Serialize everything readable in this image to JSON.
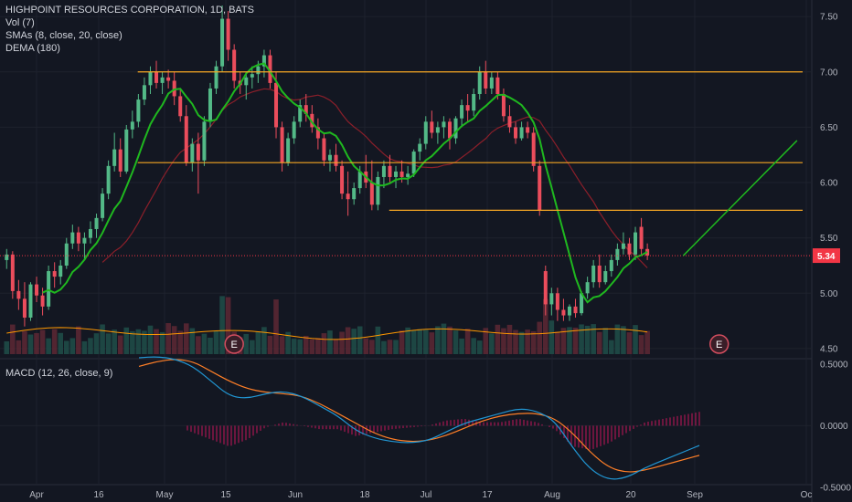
{
  "header": {
    "symbol_line": "HIGHPOINT RESOURCES CORPORATION, 1D, BATS",
    "vol_label": "Vol (7)",
    "sma_label": "SMAs (8, close, 20, close)",
    "dema_label": "DEMA (180)",
    "macd_label": "MACD (12, 26, close, 9)"
  },
  "colors": {
    "background": "#131722",
    "up": "#26a69a",
    "up_candle": "#53b987",
    "down_candle": "#eb4d5c",
    "sma8": "#1fb81f",
    "sma20": "#8b1f2a",
    "level_line": "#f5a623",
    "macd_line": "#2196d3",
    "signal_line": "#ff7f27",
    "vol_ma": "#ff9800",
    "price_tag": "#f23645",
    "projection": "#1fb81f"
  },
  "chart_data": [
    {
      "type": "candlestick",
      "title": "HIGHPOINT RESOURCES CORPORATION, 1D, BATS",
      "price_axis": {
        "min": 4.45,
        "max": 7.6,
        "ticks": [
          7.5,
          7.0,
          6.5,
          6.0,
          5.5,
          5.0,
          4.5
        ]
      },
      "time_axis": [
        "Apr",
        "16",
        "May",
        "15",
        "Jun",
        "18",
        "Jul",
        "17",
        "Aug",
        "20",
        "Sep",
        "Oc"
      ],
      "last_price": "5.34",
      "candles": [
        [
          5.3,
          5.4,
          5.22,
          5.35
        ],
        [
          5.35,
          5.38,
          4.95,
          5.02
        ],
        [
          5.02,
          5.12,
          4.85,
          4.95
        ],
        [
          4.95,
          5.1,
          4.7,
          4.78
        ],
        [
          4.78,
          5.1,
          4.75,
          5.08
        ],
        [
          5.08,
          5.15,
          4.92,
          4.98
        ],
        [
          4.98,
          5.05,
          4.8,
          4.88
        ],
        [
          4.88,
          5.25,
          4.85,
          5.2
        ],
        [
          5.2,
          5.28,
          5.05,
          5.15
        ],
        [
          5.15,
          5.3,
          5.08,
          5.25
        ],
        [
          5.25,
          5.5,
          5.22,
          5.45
        ],
        [
          5.45,
          5.62,
          5.4,
          5.55
        ],
        [
          5.55,
          5.6,
          5.38,
          5.45
        ],
        [
          5.45,
          5.55,
          5.3,
          5.5
        ],
        [
          5.5,
          5.65,
          5.45,
          5.58
        ],
        [
          5.58,
          5.72,
          5.5,
          5.68
        ],
        [
          5.68,
          5.95,
          5.65,
          5.9
        ],
        [
          5.9,
          6.2,
          5.85,
          6.15
        ],
        [
          6.15,
          6.45,
          6.1,
          6.3
        ],
        [
          6.3,
          6.4,
          6.05,
          6.1
        ],
        [
          6.1,
          6.52,
          6.08,
          6.48
        ],
        [
          6.48,
          6.65,
          6.4,
          6.55
        ],
        [
          6.55,
          6.8,
          6.5,
          6.75
        ],
        [
          6.75,
          6.95,
          6.7,
          6.88
        ],
        [
          6.88,
          7.05,
          6.8,
          7.0
        ],
        [
          7.0,
          7.1,
          6.85,
          6.9
        ],
        [
          6.9,
          7.0,
          6.8,
          6.95
        ],
        [
          6.95,
          7.02,
          6.85,
          6.92
        ],
        [
          6.92,
          7.0,
          6.7,
          6.78
        ],
        [
          6.78,
          6.85,
          6.55,
          6.6
        ],
        [
          6.6,
          6.7,
          6.15,
          6.18
        ],
        [
          6.18,
          6.4,
          6.1,
          6.35
        ],
        [
          6.35,
          6.45,
          5.9,
          6.2
        ],
        [
          6.2,
          6.6,
          6.15,
          6.55
        ],
        [
          6.55,
          6.9,
          6.5,
          6.85
        ],
        [
          6.85,
          7.1,
          6.8,
          7.05
        ],
        [
          7.05,
          7.6,
          7.0,
          7.48
        ],
        [
          7.48,
          7.55,
          7.1,
          7.2
        ],
        [
          7.2,
          7.25,
          6.85,
          6.92
        ],
        [
          6.92,
          7.0,
          6.8,
          6.88
        ],
        [
          6.88,
          7.0,
          6.75,
          6.95
        ],
        [
          6.95,
          7.05,
          6.85,
          6.98
        ],
        [
          6.98,
          7.1,
          6.9,
          7.05
        ],
        [
          7.05,
          7.2,
          6.95,
          7.15
        ],
        [
          7.15,
          7.2,
          6.85,
          6.9
        ],
        [
          6.9,
          7.0,
          6.4,
          6.5
        ],
        [
          6.5,
          6.55,
          6.1,
          6.18
        ],
        [
          6.18,
          6.45,
          6.15,
          6.4
        ],
        [
          6.4,
          6.6,
          6.35,
          6.55
        ],
        [
          6.55,
          6.75,
          6.5,
          6.7
        ],
        [
          6.7,
          6.8,
          6.55,
          6.62
        ],
        [
          6.62,
          6.7,
          6.45,
          6.5
        ],
        [
          6.5,
          6.58,
          6.3,
          6.4
        ],
        [
          6.4,
          6.45,
          6.15,
          6.2
        ],
        [
          6.2,
          6.3,
          6.1,
          6.25
        ],
        [
          6.25,
          6.35,
          6.1,
          6.15
        ],
        [
          6.15,
          6.2,
          5.85,
          5.9
        ],
        [
          5.9,
          6.1,
          5.7,
          5.85
        ],
        [
          5.85,
          6.0,
          5.8,
          5.95
        ],
        [
          5.95,
          6.15,
          5.9,
          6.1
        ],
        [
          6.1,
          6.25,
          5.95,
          6.0
        ],
        [
          6.0,
          6.2,
          5.75,
          5.8
        ],
        [
          5.8,
          6.1,
          5.75,
          6.05
        ],
        [
          6.05,
          6.2,
          5.95,
          6.15
        ],
        [
          6.15,
          6.25,
          6.0,
          6.05
        ],
        [
          6.05,
          6.15,
          5.95,
          6.1
        ],
        [
          6.1,
          6.2,
          6.0,
          6.05
        ],
        [
          6.05,
          6.15,
          5.98,
          6.08
        ],
        [
          6.08,
          6.3,
          6.05,
          6.28
        ],
        [
          6.28,
          6.4,
          6.2,
          6.35
        ],
        [
          6.35,
          6.6,
          6.3,
          6.55
        ],
        [
          6.55,
          6.65,
          6.4,
          6.45
        ],
        [
          6.45,
          6.55,
          6.35,
          6.5
        ],
        [
          6.5,
          6.6,
          6.4,
          6.55
        ],
        [
          6.55,
          6.58,
          6.3,
          6.4
        ],
        [
          6.4,
          6.6,
          6.35,
          6.58
        ],
        [
          6.58,
          6.75,
          6.5,
          6.7
        ],
        [
          6.7,
          6.8,
          6.55,
          6.65
        ],
        [
          6.65,
          6.85,
          6.6,
          6.8
        ],
        [
          6.8,
          7.05,
          6.75,
          7.0
        ],
        [
          7.0,
          7.1,
          6.8,
          6.85
        ],
        [
          6.85,
          7.0,
          6.8,
          6.95
        ],
        [
          6.95,
          7.0,
          6.75,
          6.8
        ],
        [
          6.8,
          6.85,
          6.55,
          6.6
        ],
        [
          6.6,
          6.7,
          6.45,
          6.5
        ],
        [
          6.5,
          6.55,
          6.35,
          6.4
        ],
        [
          6.4,
          6.55,
          6.38,
          6.5
        ],
        [
          6.5,
          6.55,
          6.4,
          6.45
        ],
        [
          6.45,
          6.5,
          6.1,
          6.15
        ],
        [
          6.15,
          6.2,
          5.7,
          5.75
        ],
        [
          5.2,
          5.25,
          4.8,
          4.9
        ],
        [
          4.9,
          5.05,
          4.8,
          5.0
        ],
        [
          5.0,
          5.05,
          4.75,
          4.85
        ],
        [
          4.85,
          4.95,
          4.75,
          4.8
        ],
        [
          4.8,
          4.9,
          4.75,
          4.88
        ],
        [
          4.88,
          4.95,
          4.78,
          4.82
        ],
        [
          4.82,
          5.02,
          4.8,
          5.0
        ],
        [
          5.0,
          5.15,
          4.95,
          5.1
        ],
        [
          5.1,
          5.3,
          5.05,
          5.25
        ],
        [
          5.25,
          5.35,
          5.05,
          5.1
        ],
        [
          5.1,
          5.25,
          5.08,
          5.2
        ],
        [
          5.2,
          5.35,
          5.15,
          5.3
        ],
        [
          5.3,
          5.45,
          5.25,
          5.4
        ],
        [
          5.4,
          5.55,
          5.35,
          5.45
        ],
        [
          5.45,
          5.5,
          5.3,
          5.35
        ],
        [
          5.35,
          5.6,
          5.3,
          5.55
        ],
        [
          5.6,
          5.68,
          5.35,
          5.4
        ],
        [
          5.4,
          5.45,
          5.3,
          5.34
        ]
      ],
      "levels": [
        {
          "price": 7.0,
          "from_index": 28,
          "to_index": 159
        },
        {
          "price": 6.18,
          "from_index": 28,
          "to_index": 159
        },
        {
          "price": 5.75,
          "from_index": 70,
          "to_index": 159
        }
      ],
      "projection": [
        [
          5.34,
          113
        ],
        [
          6.38,
          132
        ]
      ],
      "earnings_markers": [
        {
          "index": 38,
          "label": "E"
        },
        {
          "index": 119,
          "label": "E"
        }
      ],
      "volume_ma_level": 0.55
    },
    {
      "type": "line",
      "title": "MACD (12, 26, close, 9)",
      "y_axis": {
        "min": -0.47,
        "max": 0.55,
        "ticks": [
          0.5,
          0.0,
          -0.5
        ],
        "tick_labels": [
          "0.5000",
          "0.0000",
          "-0.5000"
        ]
      },
      "series": [
        {
          "name": "MACD",
          "values": [
            0.55,
            0.56,
            0.54,
            0.48,
            0.36,
            0.24,
            0.22,
            0.26,
            0.28,
            0.24,
            0.16,
            0.08,
            -0.04,
            -0.1,
            -0.13,
            -0.14,
            -0.12,
            -0.05,
            0.02,
            0.06,
            0.1,
            0.14,
            0.12,
            0.04,
            -0.18,
            -0.36,
            -0.44,
            -0.42,
            -0.34,
            -0.28,
            -0.22,
            -0.16
          ]
        },
        {
          "name": "Signal",
          "values": [
            0.48,
            0.52,
            0.54,
            0.52,
            0.44,
            0.36,
            0.3,
            0.27,
            0.26,
            0.24,
            0.18,
            0.1,
            0.02,
            -0.06,
            -0.11,
            -0.13,
            -0.12,
            -0.08,
            -0.02,
            0.04,
            0.08,
            0.1,
            0.1,
            0.06,
            -0.06,
            -0.22,
            -0.34,
            -0.38,
            -0.36,
            -0.32,
            -0.28,
            -0.24
          ]
        }
      ]
    }
  ]
}
